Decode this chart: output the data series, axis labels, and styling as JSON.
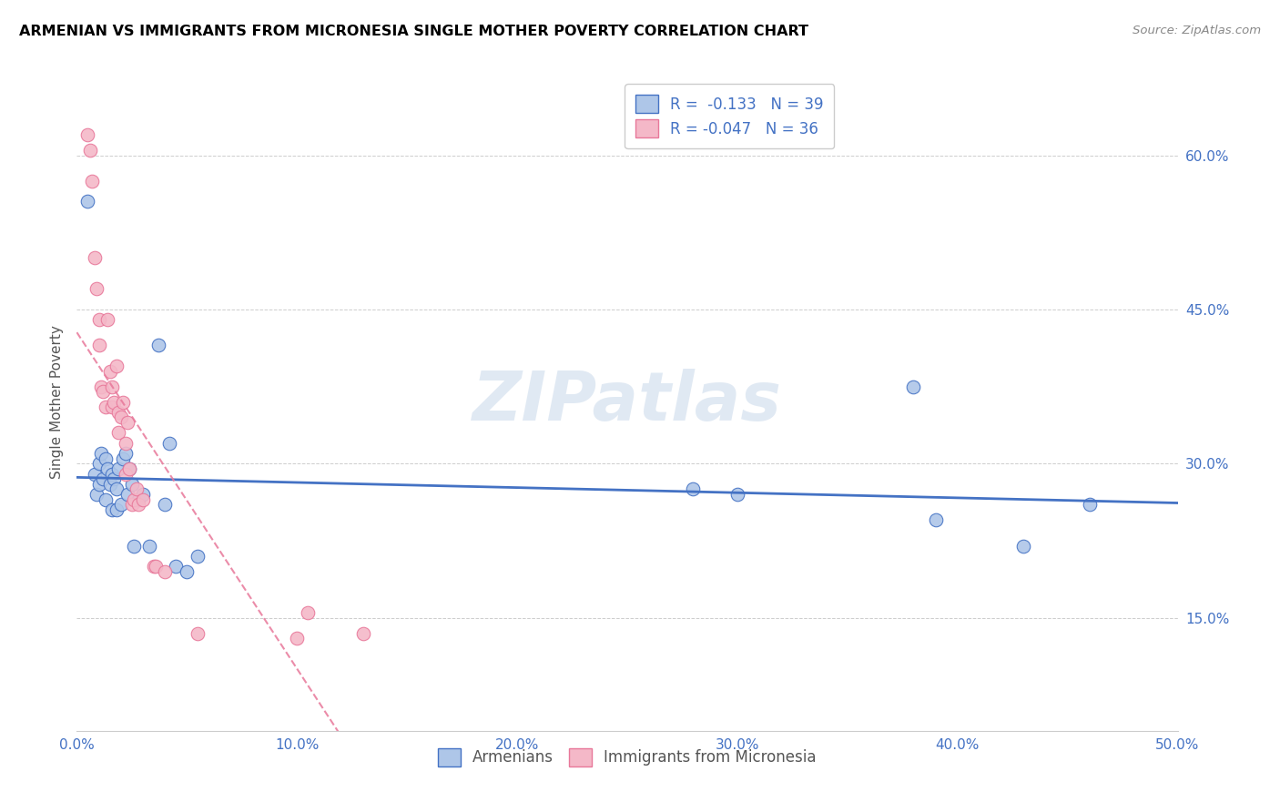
{
  "title": "ARMENIAN VS IMMIGRANTS FROM MICRONESIA SINGLE MOTHER POVERTY CORRELATION CHART",
  "source": "Source: ZipAtlas.com",
  "ylabel": "Single Mother Poverty",
  "xlim": [
    0.0,
    0.5
  ],
  "ylim": [
    0.04,
    0.68
  ],
  "xtick_labels": [
    "0.0%",
    "",
    "",
    "",
    "",
    "10.0%",
    "",
    "",
    "",
    "",
    "20.0%",
    "",
    "",
    "",
    "",
    "30.0%",
    "",
    "",
    "",
    "",
    "40.0%",
    "",
    "",
    "",
    "",
    "50.0%"
  ],
  "xtick_vals": [
    0.0,
    0.02,
    0.04,
    0.06,
    0.08,
    0.1,
    0.12,
    0.14,
    0.16,
    0.18,
    0.2,
    0.22,
    0.24,
    0.26,
    0.28,
    0.3,
    0.32,
    0.34,
    0.36,
    0.38,
    0.4,
    0.42,
    0.44,
    0.46,
    0.48,
    0.5
  ],
  "xtick_major_labels": [
    "0.0%",
    "10.0%",
    "20.0%",
    "30.0%",
    "40.0%",
    "50.0%"
  ],
  "xtick_major_vals": [
    0.0,
    0.1,
    0.2,
    0.3,
    0.4,
    0.5
  ],
  "ytick_labels": [
    "15.0%",
    "30.0%",
    "45.0%",
    "60.0%"
  ],
  "ytick_vals": [
    0.15,
    0.3,
    0.45,
    0.6
  ],
  "color_armenian_fill": "#aec6e8",
  "color_armenian_edge": "#4472c4",
  "color_micronesia_fill": "#f4b8c8",
  "color_micronesia_edge": "#e8789a",
  "color_line_armenian": "#4472c4",
  "color_line_micronesia": "#e8789a",
  "legend_r_armenian": "-0.133",
  "legend_n_armenian": "39",
  "legend_r_micronesia": "-0.047",
  "legend_n_micronesia": "36",
  "watermark": "ZIPatlas",
  "armenian_x": [
    0.005,
    0.008,
    0.009,
    0.01,
    0.01,
    0.011,
    0.012,
    0.013,
    0.013,
    0.014,
    0.015,
    0.016,
    0.016,
    0.017,
    0.018,
    0.018,
    0.019,
    0.02,
    0.021,
    0.022,
    0.023,
    0.024,
    0.025,
    0.026,
    0.028,
    0.03,
    0.033,
    0.037,
    0.04,
    0.042,
    0.045,
    0.05,
    0.055,
    0.28,
    0.3,
    0.38,
    0.39,
    0.43,
    0.46
  ],
  "armenian_y": [
    0.555,
    0.29,
    0.27,
    0.3,
    0.28,
    0.31,
    0.285,
    0.305,
    0.265,
    0.295,
    0.28,
    0.29,
    0.255,
    0.285,
    0.275,
    0.255,
    0.295,
    0.26,
    0.305,
    0.31,
    0.27,
    0.295,
    0.28,
    0.22,
    0.265,
    0.27,
    0.22,
    0.415,
    0.26,
    0.32,
    0.2,
    0.195,
    0.21,
    0.275,
    0.27,
    0.375,
    0.245,
    0.22,
    0.26
  ],
  "micronesia_x": [
    0.005,
    0.006,
    0.007,
    0.008,
    0.009,
    0.01,
    0.01,
    0.011,
    0.012,
    0.013,
    0.014,
    0.015,
    0.016,
    0.016,
    0.017,
    0.018,
    0.019,
    0.019,
    0.02,
    0.021,
    0.022,
    0.022,
    0.023,
    0.024,
    0.025,
    0.026,
    0.027,
    0.028,
    0.03,
    0.035,
    0.036,
    0.04,
    0.055,
    0.1,
    0.105,
    0.13
  ],
  "micronesia_y": [
    0.62,
    0.605,
    0.575,
    0.5,
    0.47,
    0.44,
    0.415,
    0.375,
    0.37,
    0.355,
    0.44,
    0.39,
    0.355,
    0.375,
    0.36,
    0.395,
    0.35,
    0.33,
    0.345,
    0.36,
    0.32,
    0.29,
    0.34,
    0.295,
    0.26,
    0.265,
    0.275,
    0.26,
    0.265,
    0.2,
    0.2,
    0.195,
    0.135,
    0.13,
    0.155,
    0.135
  ]
}
